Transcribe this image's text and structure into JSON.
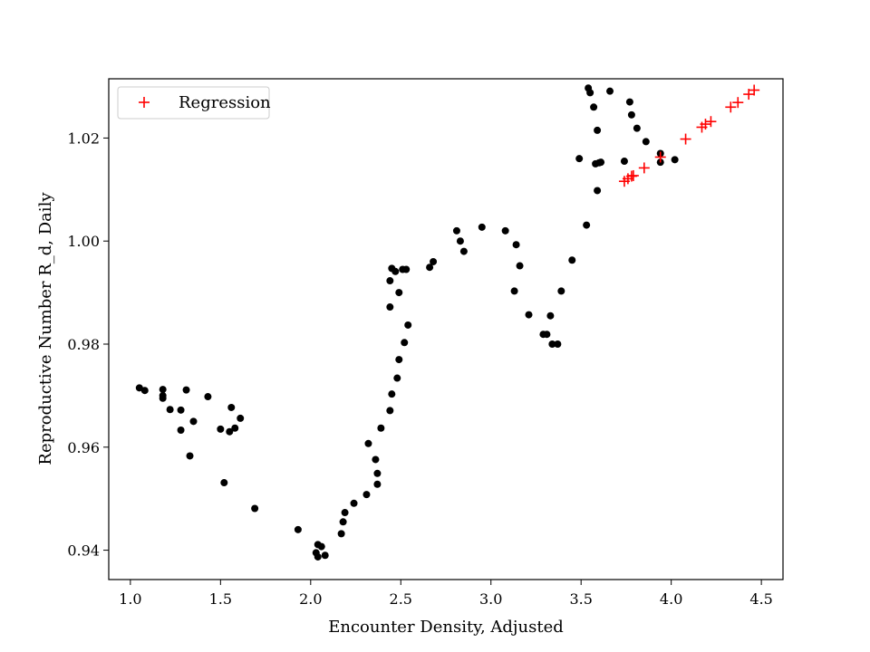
{
  "chart_data": {
    "type": "scatter",
    "xlabel": "Encounter Density, Adjusted",
    "ylabel": "Reproductive Number R_d, Daily",
    "xlim": [
      0.88,
      4.62
    ],
    "ylim": [
      0.9343,
      1.0315
    ],
    "xticks": [
      1.0,
      1.5,
      2.0,
      2.5,
      3.0,
      3.5,
      4.0,
      4.5
    ],
    "xtick_labels": [
      "1.0",
      "1.5",
      "2.0",
      "2.5",
      "3.0",
      "3.5",
      "4.0",
      "4.5"
    ],
    "yticks": [
      0.94,
      0.96,
      0.98,
      1.0,
      1.02
    ],
    "ytick_labels": [
      "0.94",
      "0.96",
      "0.98",
      "1.00",
      "1.02"
    ],
    "grid": false,
    "legend_position": "top-left",
    "series": [
      {
        "marker": "dot",
        "color": "#000000",
        "points": [
          [
            1.05,
            0.9715
          ],
          [
            1.08,
            0.971
          ],
          [
            1.18,
            0.9712
          ],
          [
            1.18,
            0.97
          ],
          [
            1.18,
            0.9695
          ],
          [
            1.22,
            0.9673
          ],
          [
            1.28,
            0.9672
          ],
          [
            1.31,
            0.9711
          ],
          [
            1.28,
            0.9633
          ],
          [
            1.35,
            0.965
          ],
          [
            1.33,
            0.9583
          ],
          [
            1.43,
            0.9698
          ],
          [
            1.5,
            0.9635
          ],
          [
            1.56,
            0.9677
          ],
          [
            1.55,
            0.963
          ],
          [
            1.58,
            0.9637
          ],
          [
            1.61,
            0.9656
          ],
          [
            1.52,
            0.9531
          ],
          [
            1.69,
            0.9481
          ],
          [
            1.93,
            0.944
          ],
          [
            2.03,
            0.9395
          ],
          [
            2.04,
            0.9387
          ],
          [
            2.04,
            0.9411
          ],
          [
            2.06,
            0.9407
          ],
          [
            2.08,
            0.939
          ],
          [
            2.17,
            0.9432
          ],
          [
            2.18,
            0.9455
          ],
          [
            2.19,
            0.9473
          ],
          [
            2.24,
            0.9491
          ],
          [
            2.31,
            0.9508
          ],
          [
            2.32,
            0.9607
          ],
          [
            2.37,
            0.9528
          ],
          [
            2.37,
            0.9549
          ],
          [
            2.36,
            0.9576
          ],
          [
            2.39,
            0.9637
          ],
          [
            2.44,
            0.9671
          ],
          [
            2.45,
            0.9703
          ],
          [
            2.48,
            0.9734
          ],
          [
            2.49,
            0.977
          ],
          [
            2.52,
            0.9803
          ],
          [
            2.54,
            0.9837
          ],
          [
            2.44,
            0.9872
          ],
          [
            2.49,
            0.99
          ],
          [
            2.44,
            0.9923
          ],
          [
            2.45,
            0.9947
          ],
          [
            2.47,
            0.9941
          ],
          [
            2.51,
            0.9945
          ],
          [
            2.53,
            0.9945
          ],
          [
            2.66,
            0.9949
          ],
          [
            2.68,
            0.996
          ],
          [
            2.81,
            1.002
          ],
          [
            2.83,
            1.0
          ],
          [
            2.85,
            0.998
          ],
          [
            2.95,
            1.0027
          ],
          [
            3.08,
            1.002
          ],
          [
            3.14,
            0.9993
          ],
          [
            3.16,
            0.9952
          ],
          [
            3.13,
            0.9903
          ],
          [
            3.21,
            0.9857
          ],
          [
            3.29,
            0.9819
          ],
          [
            3.31,
            0.9819
          ],
          [
            3.33,
            0.9855
          ],
          [
            3.34,
            0.98
          ],
          [
            3.37,
            0.98
          ],
          [
            3.39,
            0.9903
          ],
          [
            3.45,
            0.9963
          ],
          [
            3.49,
            1.016
          ],
          [
            3.53,
            1.0031
          ],
          [
            3.54,
            1.0297
          ],
          [
            3.55,
            1.0288
          ],
          [
            3.57,
            1.026
          ],
          [
            3.58,
            1.015
          ],
          [
            3.59,
            1.0098
          ],
          [
            3.59,
            1.0215
          ],
          [
            3.6,
            1.0152
          ],
          [
            3.61,
            1.0153
          ],
          [
            3.66,
            1.0291
          ],
          [
            3.74,
            1.0155
          ],
          [
            3.77,
            1.027
          ],
          [
            3.78,
            1.0245
          ],
          [
            3.81,
            1.0219
          ],
          [
            3.86,
            1.0193
          ],
          [
            3.94,
            1.0153
          ],
          [
            3.94,
            1.017
          ],
          [
            4.02,
            1.0158
          ]
        ]
      },
      {
        "name": "Regression",
        "marker": "plus",
        "color": "#ff0000",
        "points": [
          [
            3.74,
            1.0116
          ],
          [
            3.76,
            1.0121
          ],
          [
            3.78,
            1.0126
          ],
          [
            3.79,
            1.0127
          ],
          [
            3.85,
            1.0142
          ],
          [
            3.94,
            1.0163
          ],
          [
            4.08,
            1.0198
          ],
          [
            4.17,
            1.0221
          ],
          [
            4.19,
            1.0227
          ],
          [
            4.22,
            1.0232
          ],
          [
            4.33,
            1.026
          ],
          [
            4.37,
            1.0269
          ],
          [
            4.43,
            1.0285
          ],
          [
            4.46,
            1.0293
          ]
        ]
      }
    ]
  }
}
